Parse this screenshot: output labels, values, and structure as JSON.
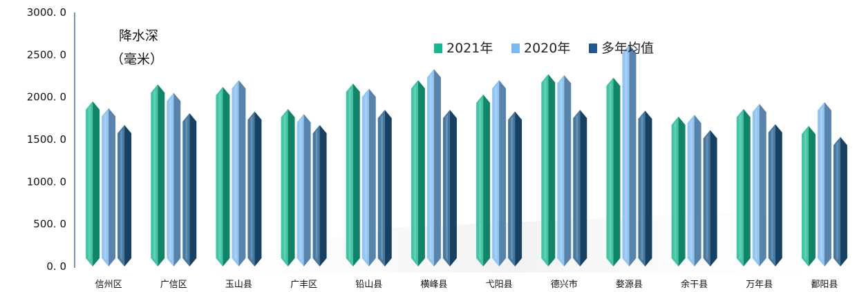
{
  "chart_data": {
    "type": "bar",
    "title": "",
    "ylabel_line1": "降水深",
    "ylabel_line2": "（毫米）",
    "categories": [
      "信州区",
      "广信区",
      "玉山县",
      "广丰区",
      "铅山县",
      "横峰县",
      "弋阳县",
      "德兴市",
      "婺源县",
      "余干县",
      "万年县",
      "鄱阳县"
    ],
    "yticks": [
      "0. 0",
      "500. 0",
      "1000. 0",
      "1500. 0",
      "2000. 0",
      "2500. 0",
      "3000. 0"
    ],
    "ylim": [
      0,
      3000
    ],
    "legend_position": "top-right",
    "grid": false,
    "series": [
      {
        "name": "2021年",
        "color": "#17b890",
        "values": [
          1950,
          2150,
          2120,
          1860,
          2160,
          2200,
          2030,
          2270,
          2230,
          1770,
          1860,
          1660
        ]
      },
      {
        "name": "2020年",
        "color": "#7ab8ef",
        "values": [
          1870,
          2050,
          2200,
          1800,
          2100,
          2330,
          2200,
          2260,
          2620,
          1790,
          1920,
          1940
        ]
      },
      {
        "name": "多年均值",
        "color": "#1f5a8a",
        "values": [
          1670,
          1810,
          1830,
          1670,
          1850,
          1850,
          1830,
          1850,
          1840,
          1610,
          1680,
          1530
        ]
      }
    ]
  }
}
